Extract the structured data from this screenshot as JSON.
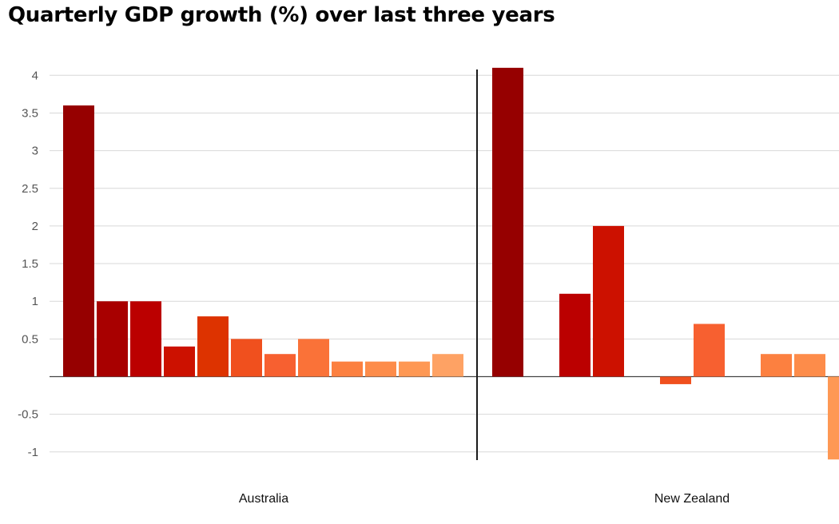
{
  "title": "Quarterly GDP growth (%) over last three years",
  "chart_data": {
    "type": "bar",
    "title": "Quarterly GDP growth (%) over last three years",
    "xlabel": "",
    "ylabel": "",
    "ylim": [
      -1,
      4
    ],
    "y_ticks": [
      "4",
      "3.5",
      "3",
      "2.5",
      "2",
      "1.5",
      "1",
      "0.5",
      "",
      "-0.5",
      "-1"
    ],
    "y_tick_values": [
      4,
      3.5,
      3,
      2.5,
      2,
      1.5,
      1,
      0.5,
      0,
      -0.5,
      -1
    ],
    "grid": true,
    "groups": [
      {
        "name": "Australia",
        "values": [
          3.6,
          1.0,
          1.0,
          0.4,
          0.8,
          0.5,
          0.3,
          0.5,
          0.2,
          0.2,
          0.2,
          0.3
        ]
      },
      {
        "name": "New Zealand",
        "values": [
          4.1,
          0,
          1.1,
          2.0,
          0,
          -0.1,
          0.7,
          0,
          0.3,
          0.3,
          -1.1
        ]
      }
    ],
    "bar_colors": [
      "#960000",
      "#a80000",
      "#bb0000",
      "#cc1100",
      "#dd3300",
      "#f0501e",
      "#f76030",
      "#fa7238",
      "#fc8040",
      "#fd8c4a",
      "#fe9854",
      "#fea264"
    ]
  }
}
